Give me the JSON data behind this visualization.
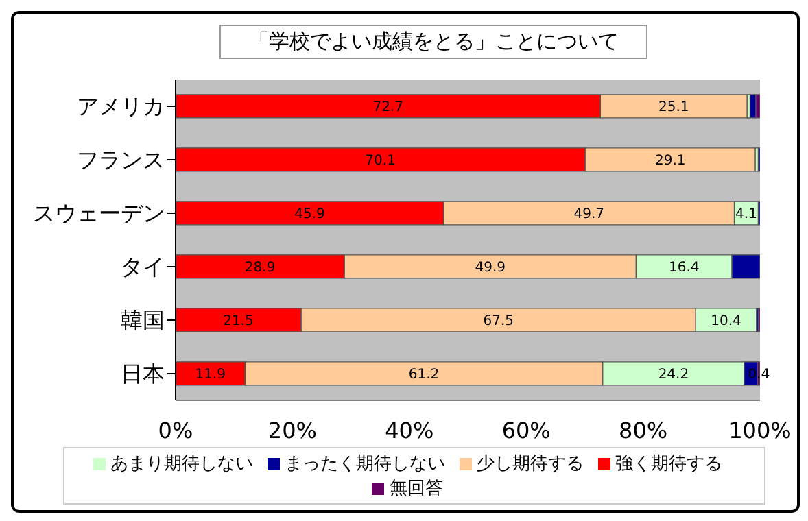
{
  "chart_data": {
    "type": "bar",
    "orientation": "horizontal",
    "stacked": true,
    "title": "「学校でよい成績をとる」ことについて",
    "categories": [
      "アメリカ",
      "フランス",
      "スウェーデン",
      "タイ",
      "韓国",
      "日本"
    ],
    "series": [
      {
        "name": "強く期待する",
        "color": "#ff0000",
        "values": [
          72.7,
          70.1,
          45.9,
          28.9,
          21.5,
          11.9
        ],
        "value_labels": [
          "72.7",
          "70.1",
          "45.9",
          "28.9",
          "21.5",
          "11.9"
        ]
      },
      {
        "name": "少し期待する",
        "color": "#ffcc99",
        "values": [
          25.1,
          29.1,
          49.7,
          49.9,
          67.5,
          61.2
        ],
        "value_labels": [
          "25.1",
          "29.1",
          "49.7",
          "49.9",
          "67.5",
          "61.2"
        ]
      },
      {
        "name": "あまり期待しない",
        "color": "#ccffcc",
        "values": [
          0.5,
          0.5,
          4.1,
          16.4,
          10.4,
          24.2
        ],
        "value_labels": [
          null,
          null,
          "4.1",
          "16.4",
          "10.4",
          "24.2"
        ]
      },
      {
        "name": "まったく期待しない",
        "color": "#000099",
        "values": [
          1.0,
          0.3,
          0.3,
          4.8,
          0.3,
          2.3
        ],
        "value_labels": [
          null,
          null,
          null,
          null,
          null,
          null
        ]
      },
      {
        "name": "無回答",
        "color": "#660066",
        "values": [
          0.7,
          0,
          0,
          0,
          0.3,
          0.4
        ],
        "value_labels": [
          null,
          null,
          null,
          null,
          null,
          "0.4"
        ]
      }
    ],
    "xlim": [
      0,
      100
    ],
    "xticks": [
      {
        "value": 0,
        "label": "0%"
      },
      {
        "value": 20,
        "label": "20%"
      },
      {
        "value": 40,
        "label": "40%"
      },
      {
        "value": 60,
        "label": "60%"
      },
      {
        "value": 80,
        "label": "80%"
      },
      {
        "value": 100,
        "label": "100%"
      }
    ],
    "grid": false,
    "legend": "bottom"
  }
}
